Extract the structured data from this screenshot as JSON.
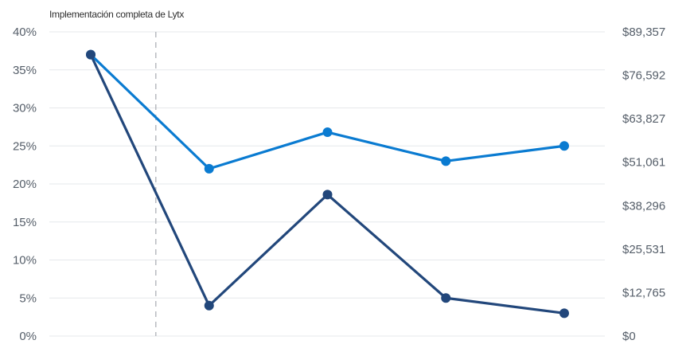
{
  "chart_data": {
    "type": "line",
    "title": "Implementación completa de Lytx",
    "x": [
      0,
      1,
      2,
      3,
      4
    ],
    "series": [
      {
        "values": [
          37,
          22,
          26.8,
          23,
          25
        ],
        "color": "#0a7bd1"
      },
      {
        "values": [
          37,
          4,
          18.6,
          5,
          3
        ],
        "color": "#22477b"
      }
    ],
    "ylim": [
      0,
      40
    ],
    "y_ticks": [
      "0%",
      "5%",
      "10%",
      "15%",
      "20%",
      "25%",
      "30%",
      "35%",
      "40%"
    ],
    "y2_ticks": [
      "$0",
      "$12,765",
      "$25,531",
      "$38,296",
      "$51,061",
      "$63,827",
      "$76,592",
      "$89,357"
    ],
    "reference_line_x": 0.55,
    "grid": true
  },
  "colors": {
    "grid": "#e6e8eb",
    "text": "#555e69"
  }
}
